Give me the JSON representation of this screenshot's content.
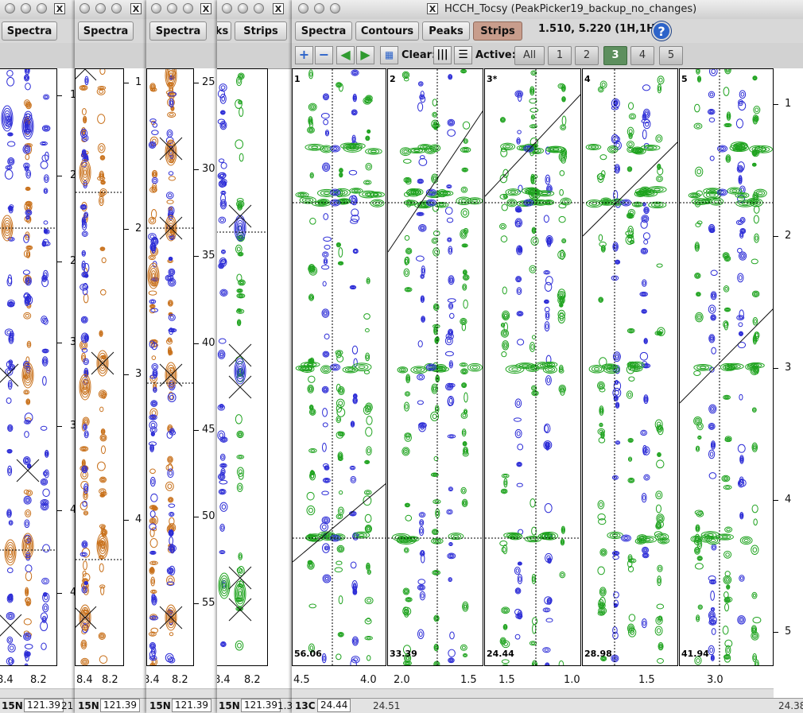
{
  "windows": {
    "w1": {
      "btn": "Spectra",
      "xticks": [
        "8.4",
        "8.2"
      ],
      "dim_name": "15N",
      "dim_value": "121.39",
      "extra": "21",
      "yticks": [
        "1",
        "2",
        "2",
        "3",
        "3",
        "4",
        "4"
      ]
    },
    "w2": {
      "btn": "Spectra",
      "xticks": [
        "8.4",
        "8.2"
      ],
      "dim_name": "15N",
      "dim_value": "121.39",
      "yticks": [
        "1",
        "2",
        "3",
        "4"
      ]
    },
    "w3": {
      "btn": "Spectra",
      "xticks": [
        "8.4",
        "8.2"
      ],
      "dim_name": "15N",
      "dim_value": "121.39",
      "yticks": [
        "25",
        "30",
        "35",
        "40",
        "45",
        "50",
        "55"
      ]
    },
    "w4": {
      "btn1": "ks",
      "btn2": "Strips",
      "xticks": [
        "8.4",
        "8.2"
      ],
      "dim_name": "15N",
      "dim_value": "121.39",
      "extra": "1.3"
    },
    "main": {
      "title": "HCCH_Tocsy (PeakPicker19_backup_no_changes)",
      "toolbar": {
        "spectra": "Spectra",
        "contours": "Contours",
        "peaks": "Peaks",
        "strips": "Strips"
      },
      "coords": "1.510,  5.220 (1H,1H)",
      "help": "?",
      "clear_label": "Clear:",
      "active_label": "Active:",
      "active_buttons": [
        "All",
        "1",
        "2",
        "3",
        "4",
        "5"
      ],
      "selected_active": "3",
      "left_axis_ticks": [
        "25",
        "30",
        "35",
        "40",
        "45",
        "50",
        "55"
      ],
      "right_axis_ticks": [
        "1",
        "2",
        "3",
        "4",
        "5"
      ],
      "strips": [
        {
          "num": "1",
          "value": "56.06",
          "xticks": [
            "4.5",
            "4.0"
          ]
        },
        {
          "num": "2",
          "value": "33.39",
          "xticks": [
            "2.0",
            "1.5"
          ]
        },
        {
          "num": "3*",
          "value": "24.44",
          "xticks": [
            "1.5",
            "1.0"
          ]
        },
        {
          "num": "4",
          "value": "28.98",
          "xticks": [
            "1.5"
          ]
        },
        {
          "num": "5",
          "value": "41.94",
          "xticks": [
            "3.0"
          ]
        }
      ],
      "status": {
        "dim_name": "13C",
        "dim_value": "24.44",
        "scroll_left": "24.51",
        "scroll_right": "24.38"
      }
    }
  },
  "colors": {
    "orange": "#c8701a",
    "blue": "#2b2bd6",
    "green": "#1fa31f",
    "selected": "#5d8f5e",
    "strips_active": "#c89d8c"
  }
}
